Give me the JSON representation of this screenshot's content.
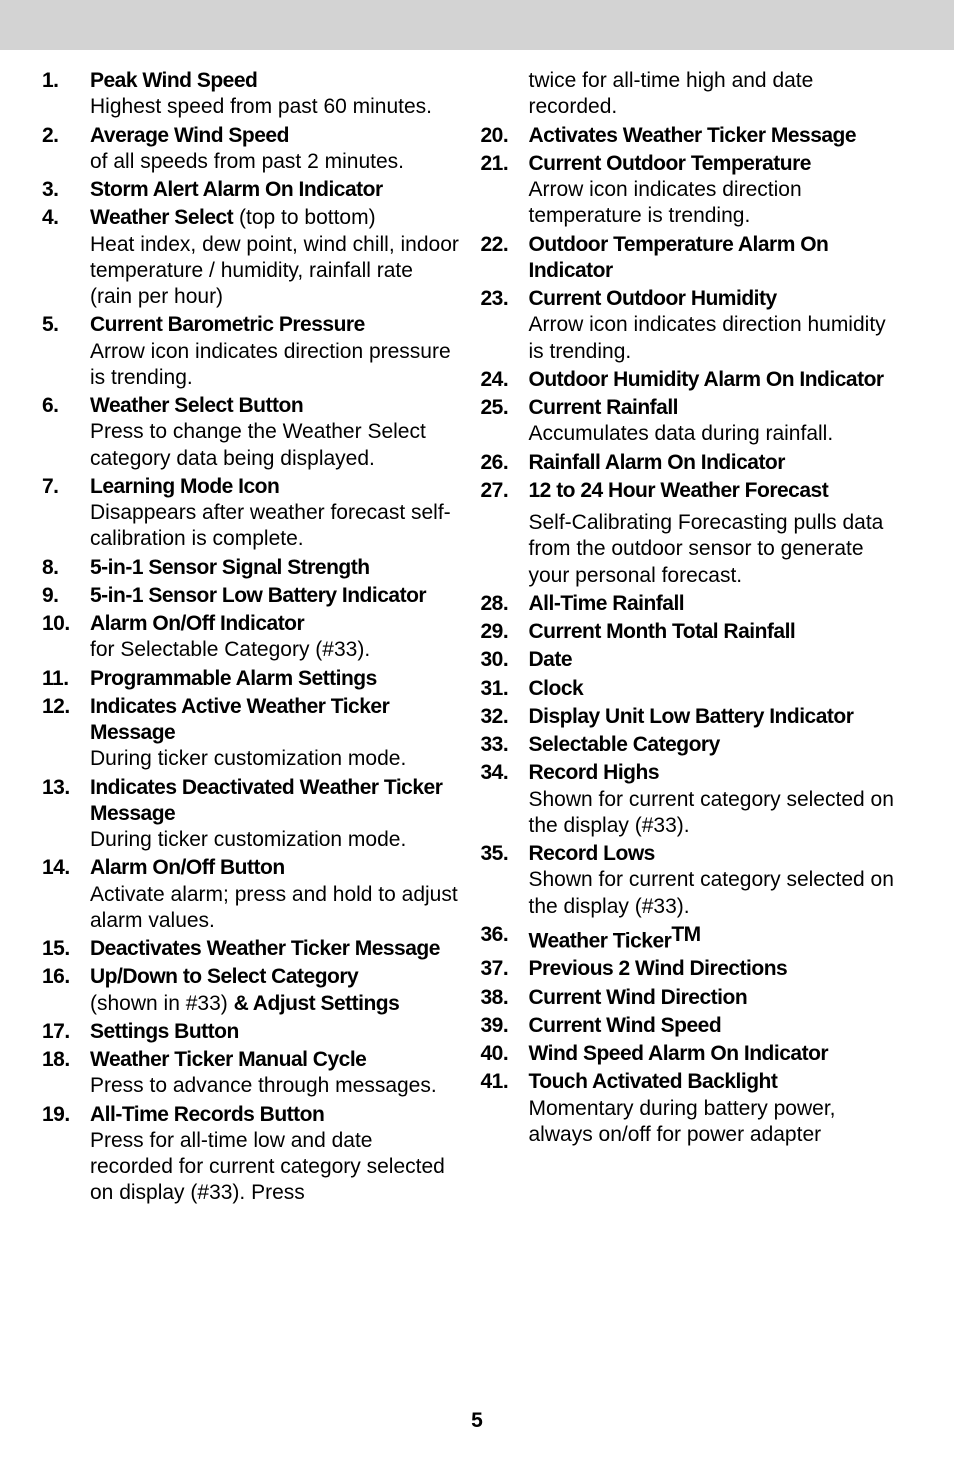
{
  "page_number": "5",
  "colors": {
    "topbar": "#d3d3d3",
    "background": "#ffffff",
    "text": "#000000"
  },
  "typography": {
    "title_weight": 900,
    "body_weight": 400,
    "font_size_pt": 21
  },
  "left_column": [
    {
      "num": "1.",
      "title": "Peak Wind Speed",
      "desc": "Highest speed from past 60 minutes."
    },
    {
      "num": "2.",
      "title": "Average Wind Speed",
      "desc": "of all speeds from past 2 minutes."
    },
    {
      "num": "3.",
      "title": "Storm Alert Alarm On Indicator"
    },
    {
      "num": "4.",
      "title": "Weather Select",
      "inline": " (top to bottom)",
      "desc": "Heat index, dew point, wind chill, indoor temperature / humidity, rainfall rate (rain per hour)"
    },
    {
      "num": "5.",
      "title": "Current Barometric Pressure",
      "desc": "Arrow icon indicates direction pressure is trending."
    },
    {
      "num": "6.",
      "title": "Weather Select Button",
      "desc": "Press to change the Weather Select category data being displayed."
    },
    {
      "num": "7.",
      "title": "Learning Mode Icon",
      "desc": "Disappears after weather forecast self-calibration is complete."
    },
    {
      "num": "8.",
      "title": "5-in-1 Sensor Signal Strength"
    },
    {
      "num": "9.",
      "title": "5-in-1 Sensor Low Battery Indicator"
    },
    {
      "num": "10.",
      "title": "Alarm On/Off Indicator",
      "desc": "for Selectable Category (#33)."
    },
    {
      "num": "11.",
      "title": "Programmable Alarm Settings"
    },
    {
      "num": "12.",
      "title": "Indicates Active Weather Ticker Message",
      "desc": "During ticker customization mode."
    },
    {
      "num": "13.",
      "title": "Indicates Deactivated Weather Ticker Message",
      "desc": "During ticker customization mode."
    },
    {
      "num": "14.",
      "title": "Alarm On/Off Button",
      "desc": "Activate alarm; press and hold to adjust alarm values."
    },
    {
      "num": "15.",
      "title": "Deactivates Weather Ticker Message"
    },
    {
      "num": "16.",
      "title": "Up/Down to Select Category",
      "inline_pre": "(shown in #33) ",
      "inline_bold": "& Adjust Settings"
    },
    {
      "num": "17.",
      "title": "Settings Button"
    },
    {
      "num": "18.",
      "title": "Weather Ticker Manual Cycle",
      "desc": "Press to advance through messages."
    },
    {
      "num": "19.",
      "title": "All-Time Records Button",
      "desc": "Press for all-time low and date recorded for current category selected on display (#33). Press"
    }
  ],
  "right_column_continue": "twice for all-time high and date recorded.",
  "right_column": [
    {
      "num": "20.",
      "title": "Activates Weather Ticker Message"
    },
    {
      "num": "21.",
      "title": "Current Outdoor Temperature",
      "desc": "Arrow icon indicates direction temperature is trending."
    },
    {
      "num": "22.",
      "title": "Outdoor Temperature Alarm On Indicator"
    },
    {
      "num": "23.",
      "title": "Current Outdoor Humidity",
      "desc": "Arrow icon indicates direction humidity is trending."
    },
    {
      "num": "24.",
      "title": "Outdoor Humidity Alarm On Indicator"
    },
    {
      "num": "25.",
      "title": "Current Rainfall",
      "desc": "Accumulates data during rainfall."
    },
    {
      "num": "26.",
      "title": "Rainfall Alarm On Indicator"
    },
    {
      "num": "27.",
      "title": "12 to 24 Hour Weather Forecast",
      "desc": "Self-Calibrating Forecasting pulls data from the outdoor sensor to generate your personal forecast.",
      "gap": true
    },
    {
      "num": "28.",
      "title": "All-Time Rainfall"
    },
    {
      "num": "29.",
      "title": "Current Month Total Rainfall"
    },
    {
      "num": "30.",
      "title": "Date"
    },
    {
      "num": "31.",
      "title": "Clock"
    },
    {
      "num": "32.",
      "title": "Display Unit Low Battery Indicator"
    },
    {
      "num": "33.",
      "title": "Selectable Category"
    },
    {
      "num": "34.",
      "title": "Record Highs",
      "desc": "Shown for current category selected on the display (#33)."
    },
    {
      "num": "35.",
      "title": "Record Lows",
      "desc": "Shown for current category selected on the display (#33)."
    },
    {
      "num": "36.",
      "title": "Weather Ticker",
      "tm": true
    },
    {
      "num": "37.",
      "title": "Previous 2 Wind Directions"
    },
    {
      "num": "38.",
      "title": "Current Wind Direction"
    },
    {
      "num": "39.",
      "title": "Current Wind Speed"
    },
    {
      "num": "40.",
      "title": "Wind Speed Alarm On Indicator"
    },
    {
      "num": "41.",
      "title": "Touch Activated Backlight",
      "desc": "Momentary during battery power, always on/off for power adapter"
    }
  ]
}
